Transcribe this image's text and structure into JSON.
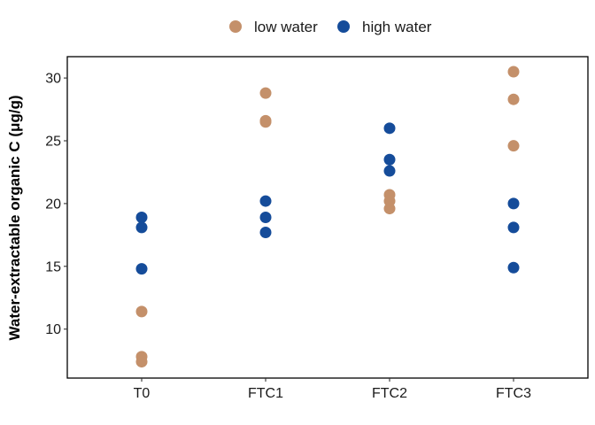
{
  "chart_data": {
    "type": "scatter",
    "title": "",
    "xlabel": "",
    "ylabel": "Water-extractable organic C (μg/g)",
    "categories": [
      "T0",
      "FTC1",
      "FTC2",
      "FTC3"
    ],
    "ylim": [
      6.1,
      31.7
    ],
    "yticks": [
      10,
      15,
      20,
      25,
      30
    ],
    "grid": false,
    "legend_position": "top",
    "series": [
      {
        "name": "low water",
        "color": "#C4906A",
        "points": [
          {
            "x": "T0",
            "y": 11.4
          },
          {
            "x": "T0",
            "y": 7.8
          },
          {
            "x": "T0",
            "y": 7.4
          },
          {
            "x": "FTC1",
            "y": 28.8
          },
          {
            "x": "FTC1",
            "y": 26.6
          },
          {
            "x": "FTC1",
            "y": 26.5
          },
          {
            "x": "FTC2",
            "y": 20.7
          },
          {
            "x": "FTC2",
            "y": 20.2
          },
          {
            "x": "FTC2",
            "y": 19.6
          },
          {
            "x": "FTC3",
            "y": 30.5
          },
          {
            "x": "FTC3",
            "y": 28.3
          },
          {
            "x": "FTC3",
            "y": 24.6
          }
        ]
      },
      {
        "name": "high water",
        "color": "#154C9A",
        "points": [
          {
            "x": "T0",
            "y": 18.9
          },
          {
            "x": "T0",
            "y": 18.1
          },
          {
            "x": "T0",
            "y": 14.8
          },
          {
            "x": "FTC1",
            "y": 20.2
          },
          {
            "x": "FTC1",
            "y": 18.9
          },
          {
            "x": "FTC1",
            "y": 17.7
          },
          {
            "x": "FTC2",
            "y": 26.0
          },
          {
            "x": "FTC2",
            "y": 23.5
          },
          {
            "x": "FTC2",
            "y": 22.6
          },
          {
            "x": "FTC3",
            "y": 20.0
          },
          {
            "x": "FTC3",
            "y": 18.1
          },
          {
            "x": "FTC3",
            "y": 14.9
          }
        ]
      }
    ]
  }
}
